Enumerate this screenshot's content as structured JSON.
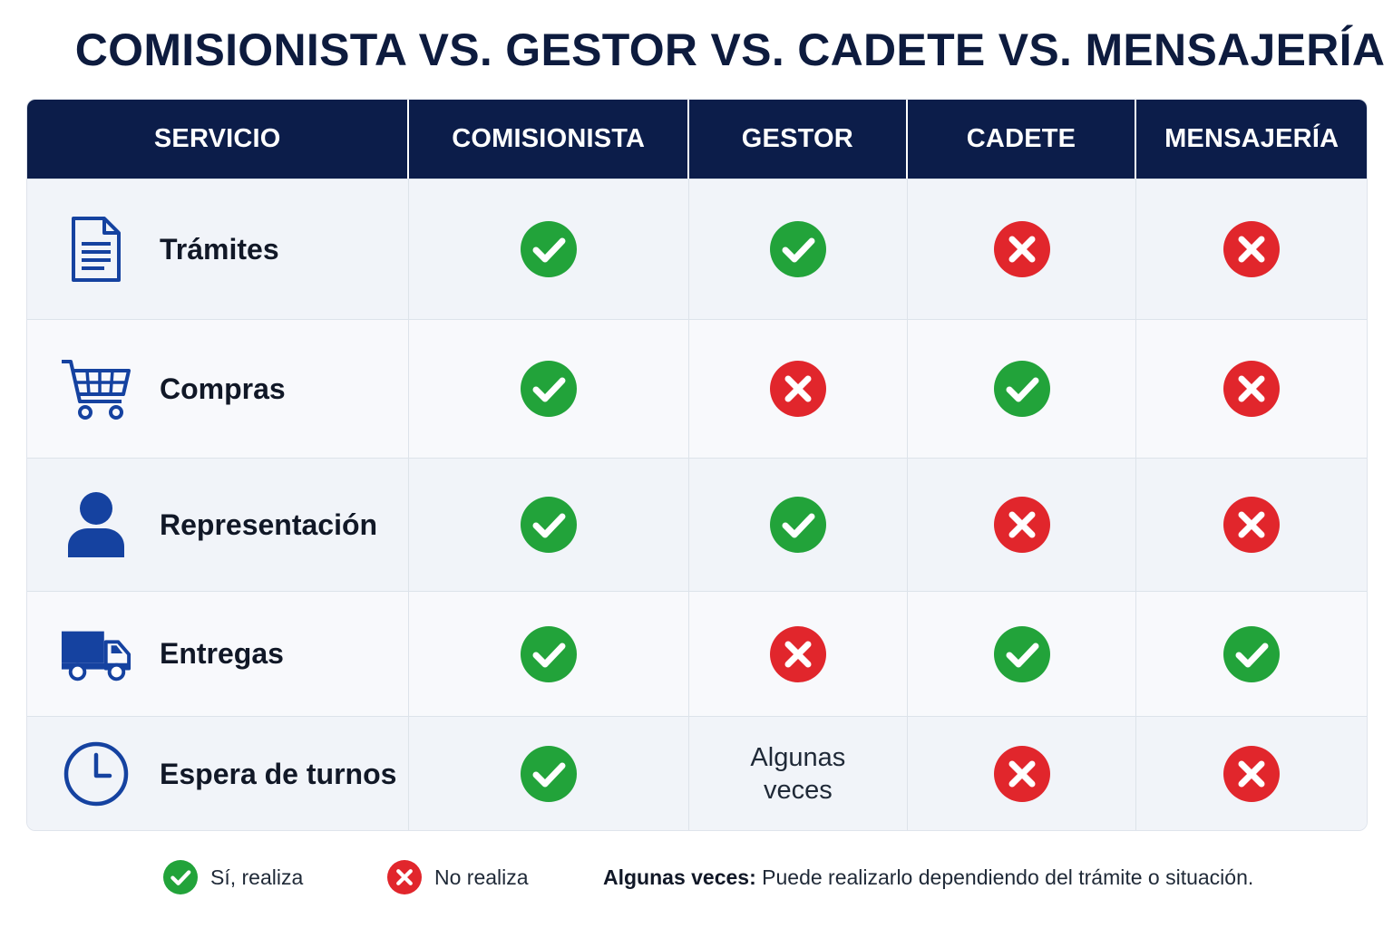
{
  "title": "COMISIONISTA VS. GESTOR VS. CADETE VS. MENSAJERÍA",
  "columns": [
    "SERVICIO",
    "COMISIONISTA",
    "GESTOR",
    "CADETE",
    "MENSAJERÍA"
  ],
  "rows": [
    {
      "label": "Trámites",
      "icon": "document-icon",
      "values": [
        "yes",
        "yes",
        "no",
        "no"
      ]
    },
    {
      "label": "Compras",
      "icon": "shopping-cart-icon",
      "values": [
        "yes",
        "no",
        "yes",
        "no"
      ]
    },
    {
      "label": "Representación",
      "icon": "person-icon",
      "values": [
        "yes",
        "yes",
        "no",
        "no"
      ]
    },
    {
      "label": "Entregas",
      "icon": "truck-icon",
      "values": [
        "yes",
        "no",
        "yes",
        "yes"
      ]
    },
    {
      "label": "Espera de turnos",
      "icon": "clock-icon",
      "values": [
        "yes",
        "partial",
        "no",
        "no"
      ],
      "partial_text": [
        "Algunas",
        "veces"
      ]
    }
  ],
  "legend": {
    "yes": "Sí, realiza",
    "no": "No realiza",
    "partial_term": "Algunas veces:",
    "partial_desc": " Puede realizarlo dependiendo del trámite o situación."
  },
  "colors": {
    "header": "#0c1d4a",
    "yes": "#22a33a",
    "no": "#e1262c",
    "icon": "#1542a0"
  }
}
